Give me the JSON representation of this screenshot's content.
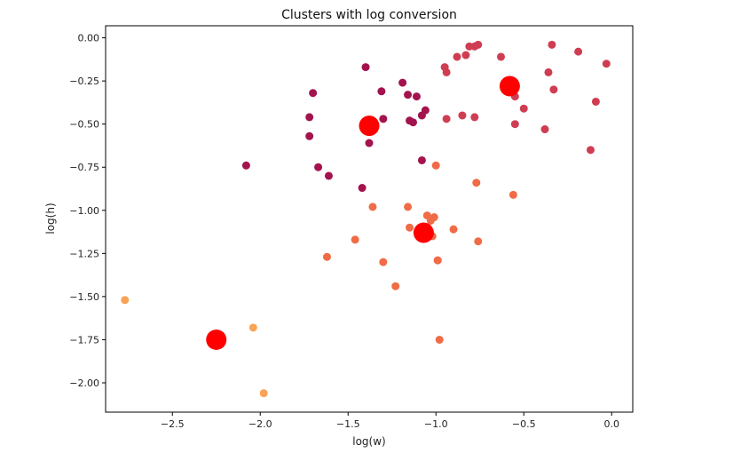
{
  "chart_data": {
    "type": "scatter",
    "title": "Clusters with log conversion",
    "xlabel": "log(w)",
    "ylabel": "log(h)",
    "xlim": [
      -2.88,
      0.12
    ],
    "ylim": [
      -2.17,
      0.07
    ],
    "xticks": [
      -2.5,
      -2.0,
      -1.5,
      -1.0,
      -0.5,
      0.0
    ],
    "xtick_labels": [
      "−2.5",
      "−2.0",
      "−1.5",
      "−1.0",
      "−0.5",
      "0.0"
    ],
    "yticks": [
      0.0,
      -0.25,
      -0.5,
      -0.75,
      -1.0,
      -1.25,
      -1.5,
      -1.75,
      -2.0
    ],
    "ytick_labels": [
      "0.00",
      "−0.25",
      "−0.50",
      "−0.75",
      "−1.00",
      "−1.25",
      "−1.50",
      "−1.75",
      "−2.00"
    ],
    "grid": false,
    "legend": "none",
    "series": [
      {
        "color": "#a3134d",
        "x": [
          -2.08,
          -1.72,
          -1.72,
          -1.7,
          -1.67,
          -1.61,
          -1.4,
          -1.42,
          -1.38,
          -1.31,
          -1.3,
          -1.19,
          -1.16,
          -1.15,
          -1.13,
          -1.11,
          -1.08,
          -1.06,
          -1.08
        ],
        "y": [
          -0.74,
          -0.46,
          -0.57,
          -0.32,
          -0.75,
          -0.8,
          -0.17,
          -0.87,
          -0.61,
          -0.31,
          -0.47,
          -0.26,
          -0.33,
          -0.48,
          -0.49,
          -0.34,
          -0.45,
          -0.42,
          -0.71
        ]
      },
      {
        "color": "#cf3d52",
        "x": [
          -0.95,
          -0.94,
          -0.88,
          -0.83,
          -0.81,
          -0.78,
          -0.76,
          -0.94,
          -0.85,
          -0.78,
          -0.63,
          -0.55,
          -0.55,
          -0.5,
          -0.38,
          -0.36,
          -0.34,
          -0.33,
          -0.19,
          -0.12,
          -0.09,
          -0.03
        ],
        "y": [
          -0.17,
          -0.2,
          -0.11,
          -0.1,
          -0.05,
          -0.05,
          -0.04,
          -0.47,
          -0.45,
          -0.46,
          -0.11,
          -0.34,
          -0.5,
          -0.41,
          -0.53,
          -0.2,
          -0.04,
          -0.3,
          -0.08,
          -0.65,
          -0.37,
          -0.15
        ]
      },
      {
        "color": "#f06c46",
        "x": [
          -1.46,
          -1.36,
          -1.3,
          -1.23,
          -1.16,
          -1.15,
          -1.05,
          -1.03,
          -1.01,
          -1.02,
          -1.0,
          -0.99,
          -0.98,
          -0.9,
          -0.77,
          -0.76,
          -0.56,
          -0.99,
          -1.62
        ],
        "y": [
          -1.17,
          -0.98,
          -1.3,
          -1.44,
          -0.98,
          -1.1,
          -1.03,
          -1.06,
          -1.04,
          -1.15,
          -0.74,
          -1.29,
          -1.75,
          -1.11,
          -0.84,
          -1.18,
          -0.91,
          -1.29,
          -1.27
        ]
      },
      {
        "color": "#f9a357",
        "x": [
          -2.77,
          -2.04,
          -1.98
        ],
        "y": [
          -1.52,
          -1.68,
          -2.06
        ]
      }
    ],
    "centroids": {
      "color": "#ff0000",
      "x": [
        -2.25,
        -1.38,
        -1.07,
        -0.58
      ],
      "y": [
        -1.75,
        -0.51,
        -1.13,
        -0.28
      ]
    }
  }
}
